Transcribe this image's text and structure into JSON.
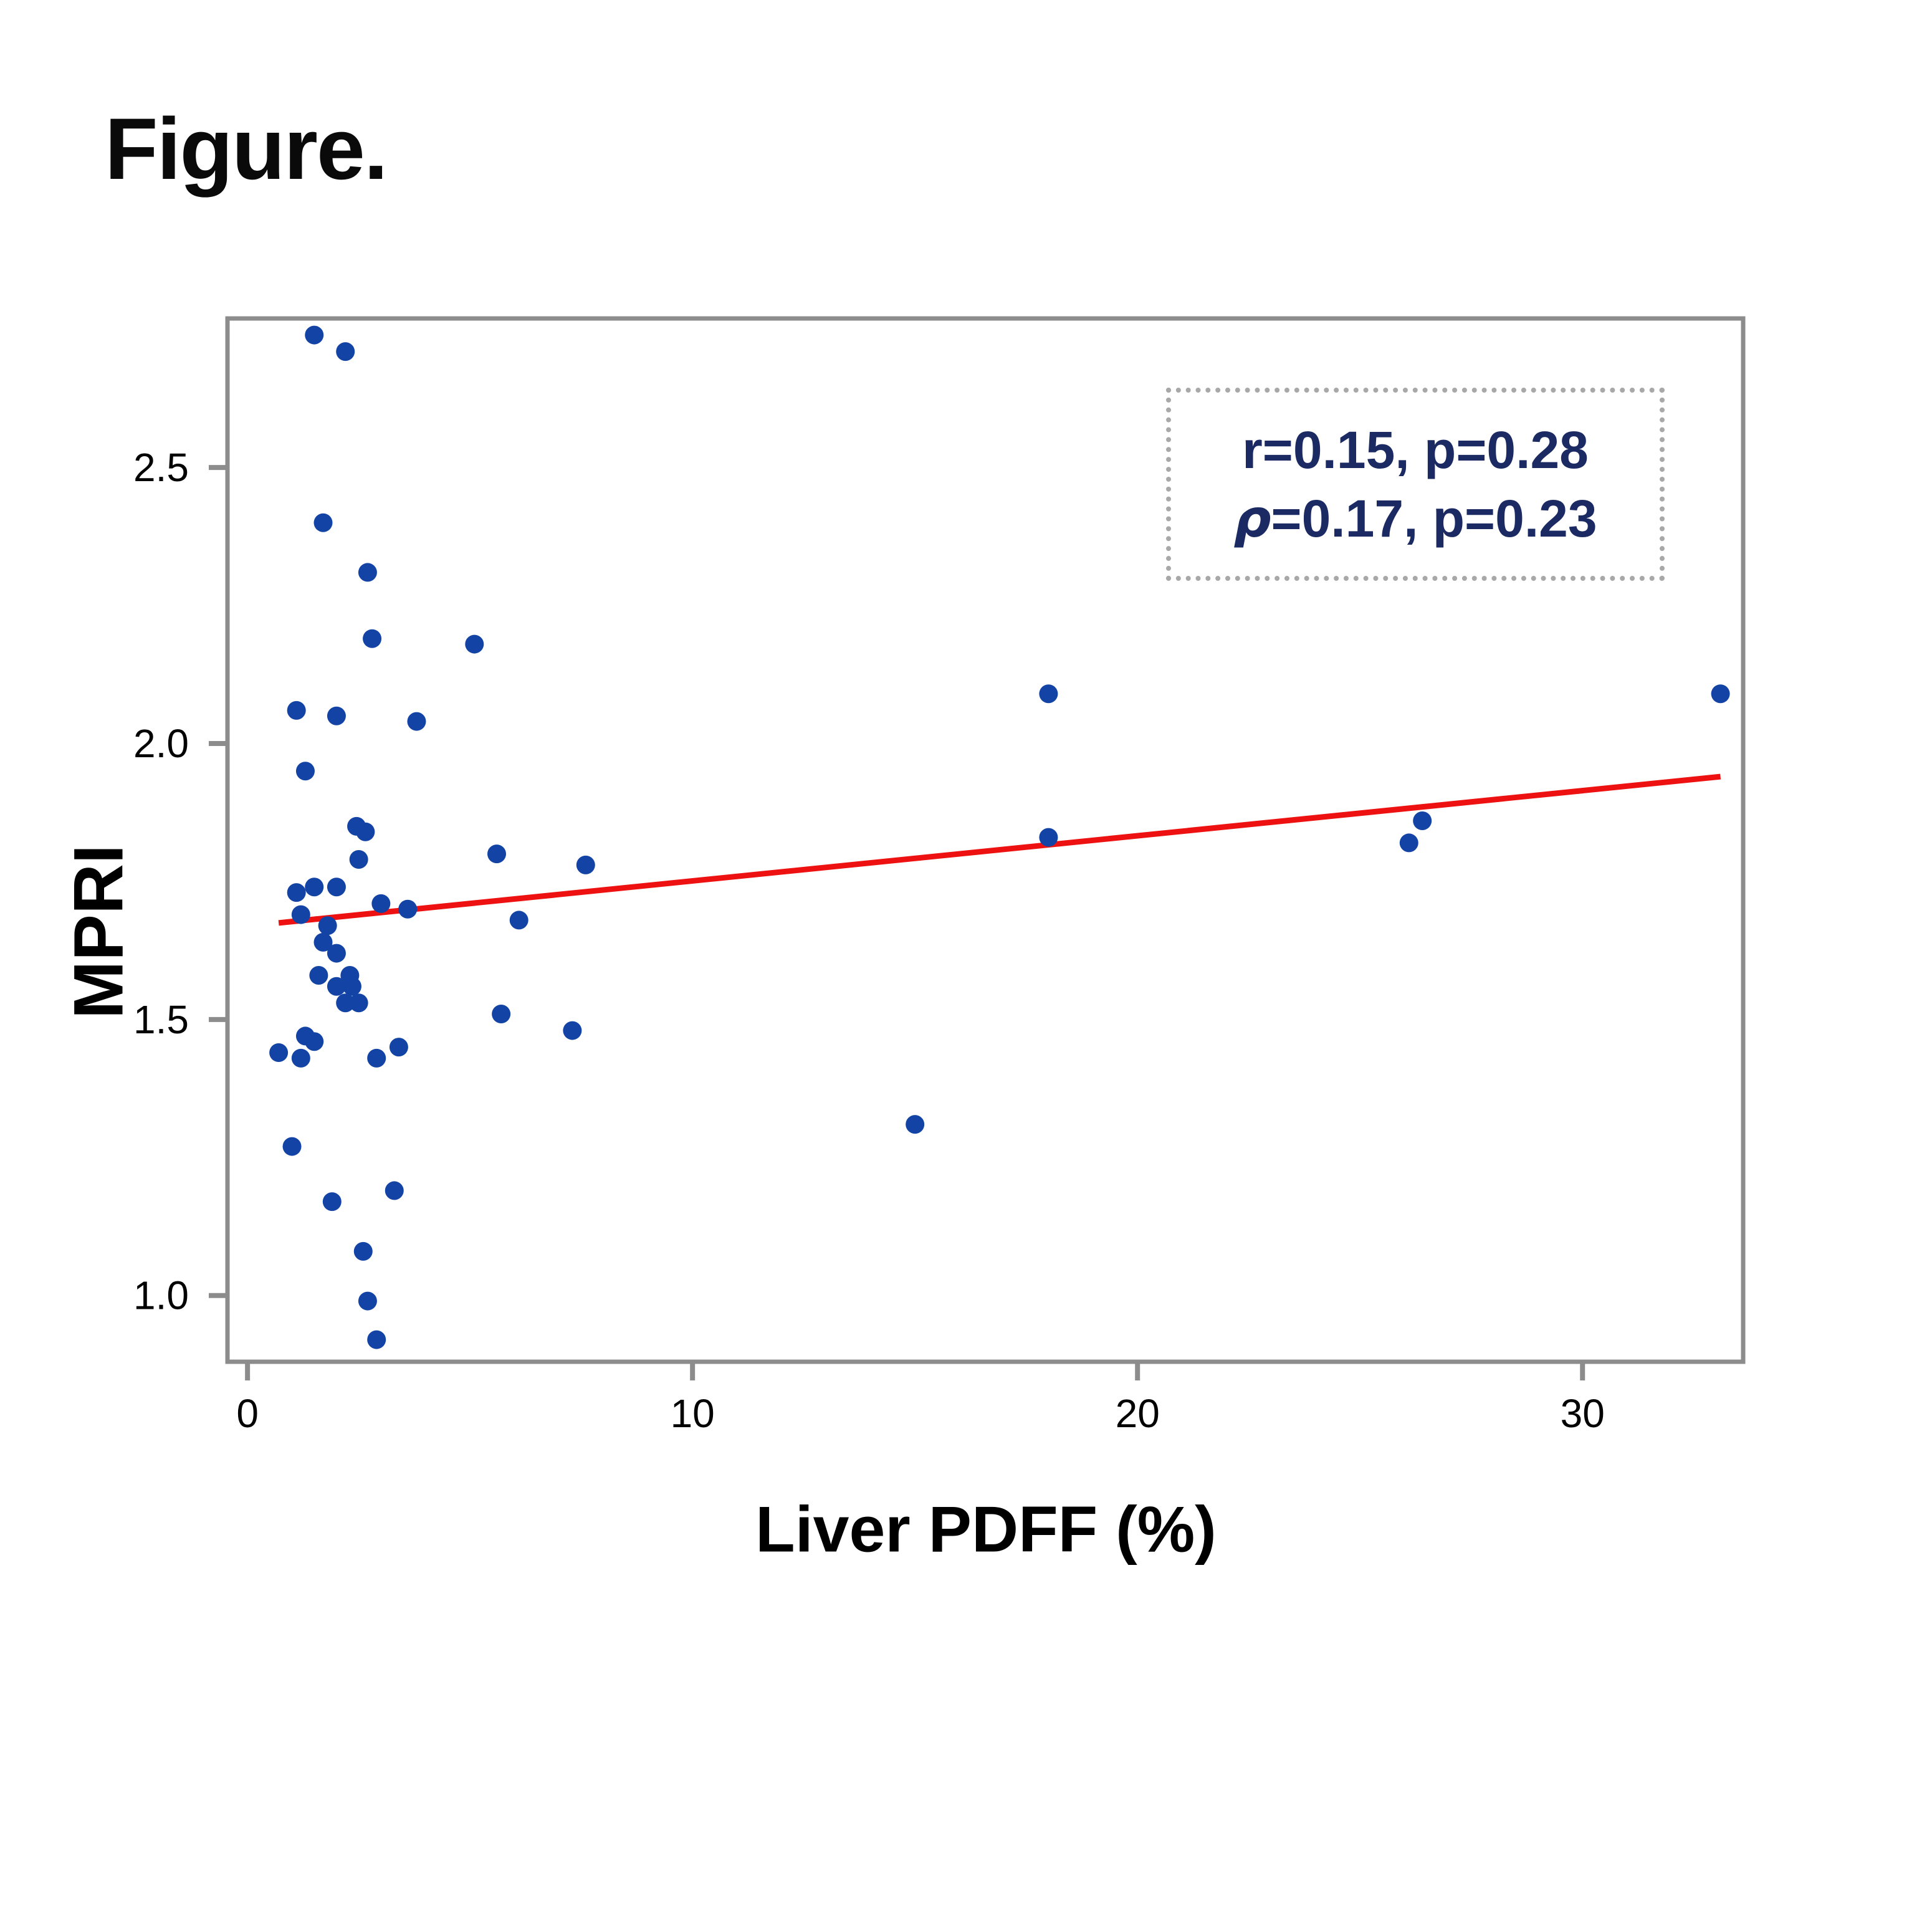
{
  "figure": {
    "title": "Figure."
  },
  "annotation": {
    "line1": "r=0.15, p=0.28",
    "rho": "ρ",
    "line2_rest": "=0.17, p=0.23"
  },
  "colors": {
    "point": "#1243a5",
    "trend_line": "#ee1111",
    "axis": "#8c8c8c",
    "tick_label": "#000000",
    "annotation_text": "#1b2a63",
    "annotation_border": "#a8a8a8"
  },
  "chart_data": {
    "type": "scatter",
    "title": "Figure.",
    "xlabel": "Liver PDFF (%)",
    "ylabel": "MPRI",
    "xlim": [
      -0.45,
      33.61
    ],
    "ylim": [
      0.88,
      2.77
    ],
    "x_ticks": [
      0,
      10,
      20,
      30
    ],
    "x_tick_labels": [
      "0",
      "10",
      "20",
      "30"
    ],
    "y_ticks": [
      1.0,
      1.5,
      2.0,
      2.5
    ],
    "y_tick_labels": [
      "1.0",
      "1.5",
      "2.0",
      "2.5"
    ],
    "grid": false,
    "legend": "none",
    "points": [
      [
        1.5,
        2.74
      ],
      [
        2.2,
        2.71
      ],
      [
        1.7,
        2.4
      ],
      [
        2.7,
        2.31
      ],
      [
        2.8,
        2.19
      ],
      [
        5.1,
        2.18
      ],
      [
        1.1,
        2.06
      ],
      [
        2.0,
        2.05
      ],
      [
        3.8,
        2.04
      ],
      [
        1.3,
        1.95
      ],
      [
        18.0,
        2.09
      ],
      [
        33.1,
        2.09
      ],
      [
        2.45,
        1.85
      ],
      [
        2.65,
        1.84
      ],
      [
        2.5,
        1.79
      ],
      [
        5.6,
        1.8
      ],
      [
        7.6,
        1.78
      ],
      [
        1.1,
        1.73
      ],
      [
        1.5,
        1.74
      ],
      [
        2.0,
        1.74
      ],
      [
        3.0,
        1.71
      ],
      [
        3.6,
        1.7
      ],
      [
        1.2,
        1.69
      ],
      [
        1.8,
        1.67
      ],
      [
        6.1,
        1.68
      ],
      [
        1.7,
        1.64
      ],
      [
        2.0,
        1.62
      ],
      [
        1.6,
        1.58
      ],
      [
        2.3,
        1.58
      ],
      [
        2.0,
        1.56
      ],
      [
        2.35,
        1.56
      ],
      [
        2.2,
        1.53
      ],
      [
        2.5,
        1.53
      ],
      [
        18.0,
        1.83
      ],
      [
        26.4,
        1.86
      ],
      [
        26.1,
        1.82
      ],
      [
        1.3,
        1.47
      ],
      [
        1.5,
        1.46
      ],
      [
        0.7,
        1.44
      ],
      [
        1.2,
        1.43
      ],
      [
        2.9,
        1.43
      ],
      [
        3.4,
        1.45
      ],
      [
        5.7,
        1.51
      ],
      [
        7.3,
        1.48
      ],
      [
        15.0,
        1.31
      ],
      [
        1.0,
        1.27
      ],
      [
        1.9,
        1.17
      ],
      [
        3.3,
        1.19
      ],
      [
        2.6,
        1.08
      ],
      [
        2.7,
        0.99
      ],
      [
        2.9,
        0.92
      ]
    ],
    "trend_line": {
      "x1": 0.7,
      "y1": 1.675,
      "x2": 33.1,
      "y2": 1.94
    },
    "annotations": [
      "r=0.15, p=0.28",
      "ρ=0.17, p=0.23"
    ]
  }
}
